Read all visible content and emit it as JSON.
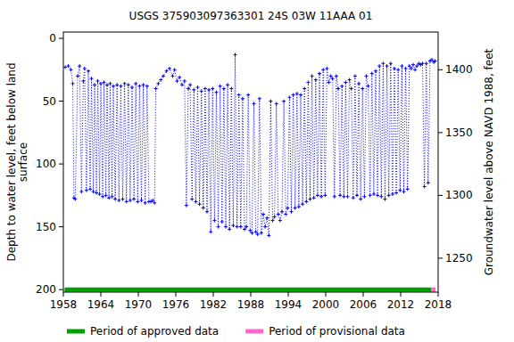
{
  "chart_data": {
    "type": "line",
    "title": "USGS 375903097363301 24S 03W 11AAA 01",
    "ylabel": [
      "Depth to water level, feet below land",
      "surface"
    ],
    "y2label": "Groundwater level above NAVD 1988, feet",
    "xlim": [
      1958,
      2018
    ],
    "xticks": [
      1958,
      1964,
      1970,
      1976,
      1982,
      1988,
      1994,
      2000,
      2006,
      2012,
      2018
    ],
    "ylim": [
      202,
      -5
    ],
    "yticks": [
      0,
      50,
      100,
      150,
      200
    ],
    "y2lim": [
      1223,
      1430
    ],
    "y2ticks": [
      1250,
      1300,
      1350,
      1400
    ],
    "grid": false,
    "series": [
      {
        "type": "line",
        "color": "#0000ff",
        "marker": "plus",
        "line_style": "dotted",
        "x": [
          1958.3,
          1958.8,
          1959.2,
          1959.5,
          1959.7,
          1959.9,
          1960.3,
          1960.6,
          1960.9,
          1961.2,
          1961.4,
          1961.7,
          1962.0,
          1962.3,
          1962.5,
          1962.8,
          1963.0,
          1963.3,
          1963.5,
          1963.8,
          1964.0,
          1964.3,
          1964.5,
          1964.8,
          1965.0,
          1965.3,
          1965.5,
          1965.8,
          1966.0,
          1966.3,
          1966.6,
          1966.9,
          1967.2,
          1967.5,
          1967.8,
          1968.1,
          1968.4,
          1968.7,
          1969.0,
          1969.3,
          1969.6,
          1969.9,
          1970.2,
          1970.5,
          1970.8,
          1971.1,
          1971.4,
          1971.7,
          1972.0,
          1972.3,
          1972.6,
          1972.8,
          1973.2,
          1973.6,
          1974.0,
          1974.5,
          1975.0,
          1975.5,
          1975.8,
          1976.2,
          1976.6,
          1977.0,
          1977.4,
          1977.7,
          1978.0,
          1978.3,
          1978.6,
          1978.9,
          1979.2,
          1979.5,
          1979.8,
          1980.1,
          1980.4,
          1980.7,
          1981.0,
          1981.3,
          1981.6,
          1981.9,
          1982.2,
          1982.5,
          1982.8,
          1983.1,
          1983.4,
          1983.7,
          1984.0,
          1984.3,
          1984.6,
          1984.9,
          1985.2,
          1985.5,
          1985.8,
          1986.1,
          1986.4,
          1986.7,
          1987.0,
          1987.3,
          1987.6,
          1987.9,
          1988.2,
          1988.5,
          1988.8,
          1989.1,
          1989.4,
          1989.7,
          1990.0,
          1990.3,
          1990.6,
          1990.9,
          1991.2,
          1991.5,
          1991.8,
          1992.1,
          1992.4,
          1992.7,
          1993.0,
          1993.3,
          1993.6,
          1993.9,
          1994.2,
          1994.5,
          1994.8,
          1995.1,
          1995.4,
          1995.7,
          1996.0,
          1996.3,
          1996.6,
          1996.9,
          1997.2,
          1997.5,
          1997.8,
          1998.1,
          1998.4,
          1998.7,
          1999.0,
          1999.3,
          1999.6,
          1999.9,
          2000.2,
          2000.5,
          2000.8,
          2001.1,
          2001.4,
          2001.7,
          2002.0,
          2002.3,
          2002.6,
          2002.9,
          2003.2,
          2003.5,
          2003.8,
          2004.1,
          2004.4,
          2004.7,
          2005.0,
          2005.3,
          2005.6,
          2005.9,
          2006.2,
          2006.5,
          2006.8,
          2007.1,
          2007.4,
          2007.7,
          2008.0,
          2008.3,
          2008.6,
          2008.9,
          2009.2,
          2009.5,
          2009.8,
          2010.1,
          2010.4,
          2010.7,
          2011.0,
          2011.3,
          2011.6,
          2011.9,
          2012.2,
          2012.5,
          2012.8,
          2013.1,
          2013.4,
          2013.7,
          2014.0,
          2014.3,
          2014.6,
          2014.9,
          2015.2,
          2015.5,
          2015.8,
          2016.1,
          2016.4,
          2016.7,
          2017.0,
          2017.3,
          2017.5
        ],
        "values": [
          23,
          22,
          25,
          36,
          127,
          128,
          30,
          22,
          122,
          34,
          24,
          121,
          26,
          120,
          32,
          122,
          37,
          123,
          34,
          124,
          36,
          126,
          35,
          125,
          37,
          127,
          36,
          126,
          38,
          128,
          37,
          129,
          38,
          128,
          36,
          130,
          37,
          129,
          39,
          128,
          36,
          130,
          38,
          129,
          37,
          131,
          38,
          130,
          130,
          129,
          131,
          40,
          36,
          33,
          30,
          26,
          24,
          30,
          25,
          34,
          31,
          37,
          34,
          133,
          40,
          37,
          128,
          41,
          130,
          39,
          132,
          42,
          135,
          40,
          138,
          41,
          154,
          40,
          145,
          43,
          150,
          38,
          146,
          40,
          150,
          37,
          152,
          40,
          149,
          13,
          150,
          45,
          150,
          48,
          152,
          150,
          45,
          153,
          155,
          52,
          154,
          156,
          48,
          155,
          140,
          150,
          143,
          157,
          50,
          145,
          142,
          52,
          140,
          145,
          138,
          50,
          140,
          135,
          47,
          138,
          45,
          135,
          44,
          134,
          45,
          132,
          40,
          130,
          35,
          128,
          30,
          127,
          33,
          125,
          28,
          126,
          25,
          125,
          24,
          35,
          30,
          32,
          126,
          30,
          40,
          125,
          38,
          126,
          35,
          126,
          33,
          40,
          127,
          30,
          125,
          36,
          128,
          40,
          126,
          30,
          38,
          125,
          28,
          124,
          26,
          125,
          22,
          126,
          20,
          128,
          22,
          125,
          20,
          124,
          24,
          123,
          25,
          121,
          22,
          122,
          24,
          120,
          22,
          24,
          21,
          25,
          22,
          20,
          21,
          20,
          118,
          20,
          115,
          18,
          17,
          19,
          18
        ]
      },
      {
        "name": "Period of approved data",
        "type": "line",
        "color": "#00a000",
        "marker": "none",
        "line_style": "solid",
        "x": [
          1958.2,
          2016.9
        ],
        "values": [
          200,
          200
        ]
      },
      {
        "name": "Period of provisional data",
        "type": "line",
        "color": "#ff66cc",
        "marker": "none",
        "line_style": "solid",
        "x": [
          2016.9,
          2017.6
        ],
        "values": [
          200,
          200
        ]
      }
    ]
  }
}
